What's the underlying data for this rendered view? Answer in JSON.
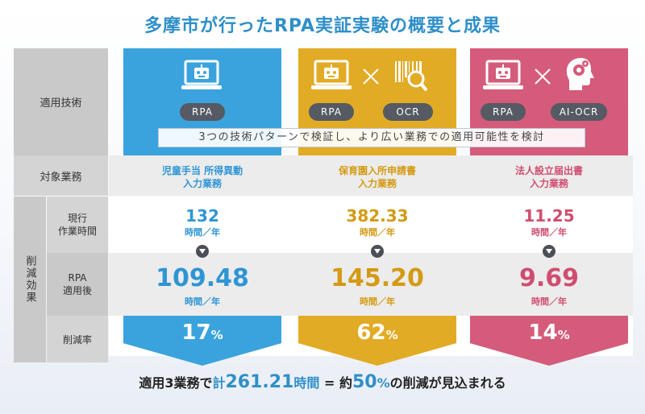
{
  "title": "多摩市が行ったRPA実証実験の概要と成果",
  "labels": {
    "tech": "適用技術",
    "target": "対象業務",
    "reduction": "削減効果",
    "current_1": "現行",
    "current_2": "作業時間",
    "after_1": "RPA",
    "after_2": "適用後",
    "rate": "削減率"
  },
  "banner": "3つの技術パターンで検証し、より広い業務での適用可能性を検討",
  "columns": [
    {
      "pills": [
        "RPA"
      ],
      "task_1": "児童手当 所得異動",
      "task_2": "入力業務",
      "current": "132",
      "unit": "時間／年",
      "after": "109.48",
      "rate": "17",
      "percent": "%",
      "color": "#3aa3dd"
    },
    {
      "pills": [
        "RPA",
        "OCR"
      ],
      "task_1": "保育園入所申請書",
      "task_2": "入力業務",
      "current": "382.33",
      "unit": "時間／年",
      "after": "145.20",
      "rate": "62",
      "percent": "%",
      "color": "#e2ab25"
    },
    {
      "pills": [
        "RPA",
        "AI-OCR"
      ],
      "task_1": "法人設立届出書",
      "task_2": "入力業務",
      "current": "11.25",
      "unit": "時間／年",
      "after": "9.69",
      "rate": "14",
      "percent": "%",
      "color": "#d55b7a"
    }
  ],
  "summary": {
    "part1": "適用3業務で",
    "part2": "計",
    "part3": "261.21",
    "part4": "時間",
    "part5": " = 約",
    "part6": "50",
    "part7": "%",
    "part8": "の削減が見込まれる"
  },
  "icons": {
    "robot_laptop": "robot-laptop-icon",
    "magnifier_barcode": "barcode-magnifier-icon",
    "ai_head": "ai-head-gear-icon",
    "cross": "multiply-icon",
    "arrow": "arrow-down-icon"
  }
}
